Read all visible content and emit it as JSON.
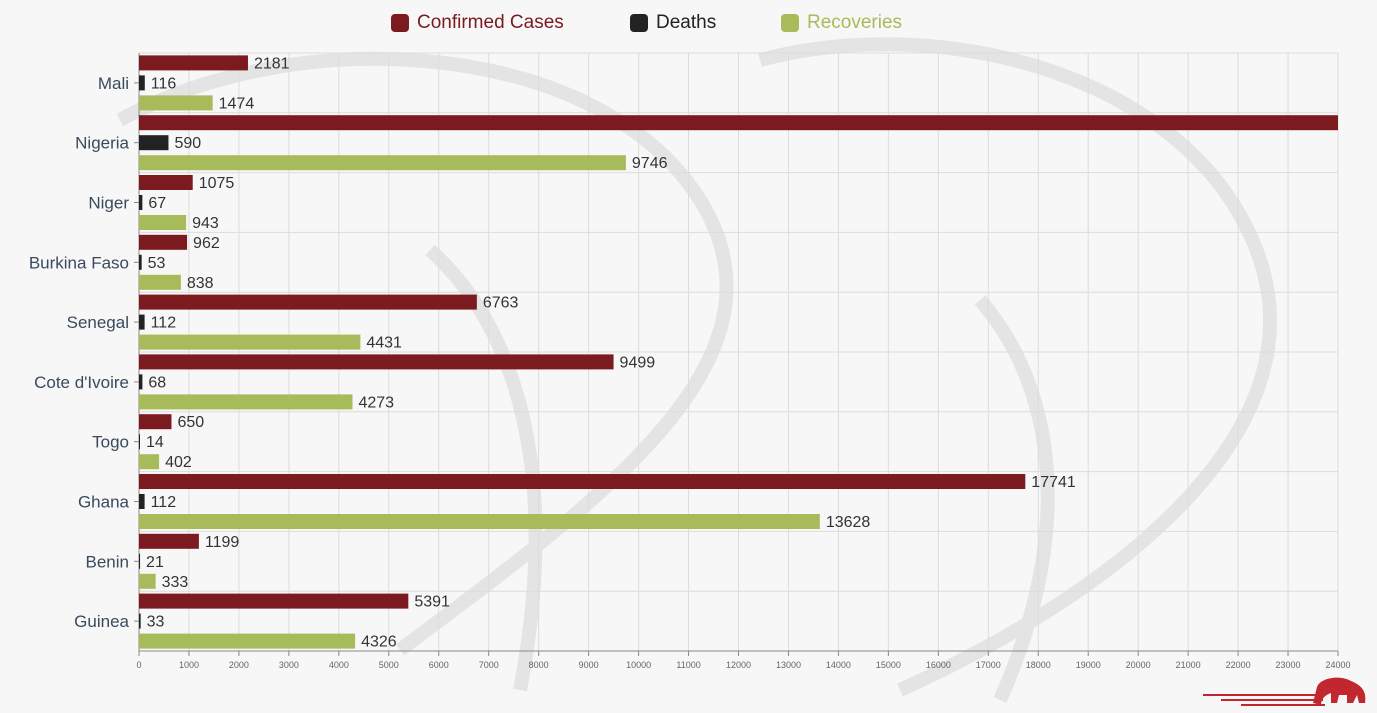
{
  "colors": {
    "confirmed": "#7b1a1f",
    "deaths": "#222222",
    "recoveries": "#a7bb5a",
    "grid": "#dcdcdc",
    "axis": "#888888",
    "label": "#333333",
    "category_label": "#3a4a5c",
    "logo": "#c2262e"
  },
  "logo_icon": "elephant-icon",
  "chart_data": {
    "type": "bar",
    "orientation": "horizontal",
    "categories": [
      "Mali",
      "Nigeria",
      "Niger",
      "Burkina Faso",
      "Senegal",
      "Cote d'Ivoire",
      "Togo",
      "Ghana",
      "Benin",
      "Guinea"
    ],
    "series": [
      {
        "name": "Confirmed Cases",
        "key": "confirmed",
        "values": [
          2181,
          24077,
          1075,
          962,
          6763,
          9499,
          650,
          17741,
          1199,
          5391
        ],
        "labels": [
          "2181",
          "",
          "1075",
          "962",
          "6763",
          "9499",
          "650",
          "17741",
          "1199",
          "5391"
        ]
      },
      {
        "name": "Deaths",
        "key": "deaths",
        "values": [
          116,
          590,
          67,
          53,
          112,
          68,
          14,
          112,
          21,
          33
        ],
        "labels": [
          "116",
          "590",
          "67",
          "53",
          "112",
          "68",
          "14",
          "112",
          "21",
          "33"
        ]
      },
      {
        "name": "Recoveries",
        "key": "recoveries",
        "values": [
          1474,
          9746,
          943,
          838,
          4431,
          4273,
          402,
          13628,
          333,
          4326
        ],
        "labels": [
          "1474",
          "9746",
          "943",
          "838",
          "4431",
          "4273",
          "402",
          "13628",
          "333",
          "4326"
        ]
      }
    ],
    "xlim": [
      0,
      24000
    ],
    "xticks": [
      0,
      1000,
      2000,
      3000,
      4000,
      5000,
      6000,
      7000,
      8000,
      9000,
      10000,
      11000,
      12000,
      13000,
      14000,
      15000,
      16000,
      17000,
      18000,
      19000,
      20000,
      21000,
      22000,
      23000,
      24000
    ],
    "grid": true,
    "legend_position": "top-center"
  }
}
